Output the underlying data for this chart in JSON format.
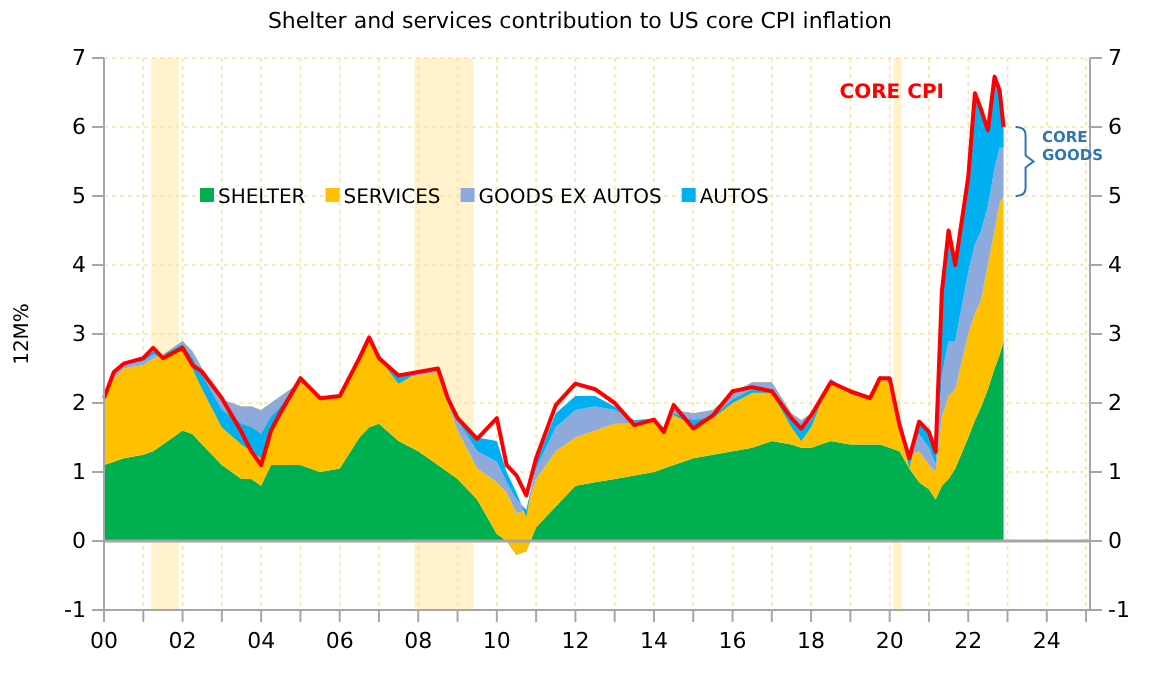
{
  "chart_data": {
    "type": "area",
    "stacked": true,
    "title": "Shelter and services contribution to US core CPI inflation",
    "ylabel": "12M%",
    "x": [
      2000.0,
      2000.25,
      2000.5,
      2001.0,
      2001.25,
      2001.5,
      2002.0,
      2002.25,
      2002.5,
      2003.0,
      2003.5,
      2003.75,
      2004.0,
      2004.25,
      2004.5,
      2005.0,
      2005.5,
      2006.0,
      2006.5,
      2006.75,
      2007.0,
      2007.5,
      2008.0,
      2008.5,
      2008.75,
      2009.0,
      2009.5,
      2010.0,
      2010.25,
      2010.5,
      2010.75,
      2011.0,
      2011.5,
      2012.0,
      2012.5,
      2013.0,
      2013.5,
      2014.0,
      2014.25,
      2014.5,
      2015.0,
      2015.5,
      2016.0,
      2016.5,
      2017.0,
      2017.5,
      2017.75,
      2018.0,
      2018.5,
      2019.0,
      2019.5,
      2019.75,
      2020.0,
      2020.25,
      2020.5,
      2020.75,
      2021.0,
      2021.17,
      2021.33,
      2021.5,
      2021.67,
      2022.0,
      2022.17,
      2022.33,
      2022.5,
      2022.67,
      2022.8,
      2022.9
    ],
    "series": [
      {
        "name": "SHELTER",
        "color": "#00b050",
        "values": [
          1.1,
          1.15,
          1.2,
          1.25,
          1.3,
          1.4,
          1.6,
          1.55,
          1.4,
          1.1,
          0.9,
          0.9,
          0.8,
          1.1,
          1.1,
          1.1,
          1.0,
          1.05,
          1.5,
          1.65,
          1.7,
          1.45,
          1.3,
          1.1,
          1.0,
          0.9,
          0.6,
          0.1,
          0.0,
          -0.2,
          -0.15,
          0.2,
          0.5,
          0.8,
          0.85,
          0.9,
          0.95,
          1.0,
          1.05,
          1.1,
          1.2,
          1.25,
          1.3,
          1.35,
          1.45,
          1.4,
          1.35,
          1.35,
          1.45,
          1.4,
          1.4,
          1.4,
          1.35,
          1.3,
          1.05,
          0.85,
          0.75,
          0.6,
          0.8,
          0.9,
          1.05,
          1.5,
          1.75,
          1.95,
          2.2,
          2.5,
          2.7,
          2.9
        ]
      },
      {
        "name": "SERVICES",
        "color": "#ffc000",
        "values": [
          0.95,
          1.2,
          1.3,
          1.3,
          1.35,
          1.3,
          1.3,
          1.2,
          1.1,
          0.95,
          1.05,
          1.05,
          1.1,
          0.9,
          1.0,
          1.2,
          1.05,
          1.05,
          1.1,
          1.25,
          1.0,
          0.9,
          1.1,
          1.35,
          1.0,
          0.7,
          0.45,
          0.75,
          0.7,
          0.6,
          0.6,
          0.7,
          0.8,
          0.7,
          0.75,
          0.8,
          0.75,
          0.75,
          0.6,
          0.8,
          0.65,
          0.65,
          0.85,
          0.95,
          0.85,
          0.45,
          0.4,
          0.5,
          0.85,
          0.8,
          0.7,
          0.95,
          1.0,
          0.5,
          0.2,
          0.45,
          0.35,
          0.4,
          1.0,
          1.2,
          1.15,
          1.5,
          1.55,
          1.55,
          1.8,
          2.0,
          2.2,
          2.1
        ]
      },
      {
        "name": "GOODS EX AUTOS",
        "color": "#8ea9db",
        "values": [
          0.03,
          0.05,
          0.05,
          0.05,
          0.05,
          0.0,
          -0.05,
          -0.1,
          -0.1,
          -0.15,
          -0.25,
          -0.3,
          -0.35,
          -0.2,
          -0.15,
          0.05,
          0.02,
          0.0,
          0.05,
          0.05,
          0.0,
          0.03,
          0.05,
          0.05,
          0.05,
          0.15,
          0.25,
          0.3,
          0.15,
          0.2,
          0.0,
          0.15,
          0.35,
          0.4,
          0.35,
          0.2,
          0.05,
          0.02,
          -0.05,
          -0.05,
          -0.1,
          -0.1,
          -0.1,
          -0.1,
          -0.1,
          -0.1,
          -0.15,
          -0.1,
          0.0,
          -0.05,
          -0.05,
          0.02,
          -0.05,
          -0.05,
          -0.05,
          0.25,
          0.25,
          0.1,
          0.6,
          0.8,
          0.7,
          0.9,
          1.0,
          1.0,
          0.85,
          0.9,
          0.8,
          0.7
        ]
      },
      {
        "name": "AUTOS",
        "color": "#00b0f0",
        "values": [
          0.0,
          0.05,
          0.03,
          0.05,
          0.05,
          0.0,
          -0.1,
          -0.15,
          -0.2,
          -0.25,
          -0.3,
          -0.35,
          -0.35,
          -0.25,
          -0.15,
          -0.05,
          0.0,
          0.0,
          0.0,
          0.02,
          -0.05,
          -0.1,
          0.0,
          0.0,
          0.02,
          0.05,
          0.2,
          0.3,
          0.15,
          0.1,
          -0.1,
          0.1,
          0.2,
          0.2,
          0.15,
          0.05,
          -0.02,
          -0.02,
          -0.02,
          -0.02,
          -0.08,
          -0.02,
          -0.05,
          -0.05,
          -0.05,
          -0.1,
          -0.15,
          -0.1,
          0.05,
          -0.02,
          0.0,
          0.03,
          -0.02,
          -0.05,
          -0.15,
          0.15,
          0.2,
          0.15,
          1.2,
          1.6,
          1.1,
          1.35,
          2.2,
          1.75,
          1.1,
          1.3,
          0.8,
          0.3
        ]
      },
      {
        "type": "line",
        "color": "#ff0000",
        "values": [
          2.07,
          2.45,
          2.57,
          2.65,
          2.8,
          2.65,
          2.8,
          2.55,
          2.45,
          2.07,
          1.58,
          1.3,
          1.1,
          1.6,
          1.87,
          2.36,
          2.07,
          2.1,
          2.65,
          2.95,
          2.65,
          2.4,
          2.45,
          2.5,
          2.07,
          1.78,
          1.48,
          1.78,
          1.1,
          0.95,
          0.66,
          1.2,
          1.97,
          2.28,
          2.2,
          2.0,
          1.68,
          1.76,
          1.58,
          1.97,
          1.63,
          1.82,
          2.17,
          2.23,
          2.17,
          1.78,
          1.63,
          1.82,
          2.3,
          2.17,
          2.07,
          2.36,
          2.36,
          1.68,
          1.2,
          1.73,
          1.58,
          1.29,
          3.62,
          4.5,
          4.0,
          5.27,
          6.49,
          6.25,
          5.95,
          6.73,
          6.53,
          6.0
        ]
      }
    ],
    "xlim": [
      2000,
      2025.1
    ],
    "xticks": [
      {
        "value": 2000,
        "label": "00"
      },
      {
        "value": 2001,
        "label": null
      },
      {
        "value": 2002,
        "label": "02"
      },
      {
        "value": 2003,
        "label": null
      },
      {
        "value": 2004,
        "label": "04"
      },
      {
        "value": 2005,
        "label": null
      },
      {
        "value": 2006,
        "label": "06"
      },
      {
        "value": 2007,
        "label": null
      },
      {
        "value": 2008,
        "label": "08"
      },
      {
        "value": 2009,
        "label": null
      },
      {
        "value": 2010,
        "label": "10"
      },
      {
        "value": 2011,
        "label": null
      },
      {
        "value": 2012,
        "label": "12"
      },
      {
        "value": 2013,
        "label": null
      },
      {
        "value": 2014,
        "label": "14"
      },
      {
        "value": 2015,
        "label": null
      },
      {
        "value": 2016,
        "label": "16"
      },
      {
        "value": 2017,
        "label": null
      },
      {
        "value": 2018,
        "label": "18"
      },
      {
        "value": 2019,
        "label": null
      },
      {
        "value": 2020,
        "label": "20"
      },
      {
        "value": 2021,
        "label": null
      },
      {
        "value": 2022,
        "label": "22"
      },
      {
        "value": 2023,
        "label": null
      },
      {
        "value": 2024,
        "label": "24"
      },
      {
        "value": 2025,
        "label": null
      }
    ],
    "ylim": [
      -1,
      7
    ],
    "yticks": [
      -1,
      0,
      1,
      2,
      3,
      4,
      5,
      6,
      7
    ],
    "y2lim": [
      -1,
      7
    ],
    "y2ticks": [
      -1,
      0,
      1,
      2,
      3,
      4,
      5,
      6,
      7
    ],
    "grid": true,
    "legend": "top left",
    "bands": [
      {
        "axis": "x",
        "from": 2001.2,
        "to": 2001.9,
        "color": "#fff2cc"
      },
      {
        "axis": "x",
        "from": 2007.9,
        "to": 2009.4,
        "color": "#fff2cc"
      },
      {
        "axis": "x",
        "from": 2020.1,
        "to": 2020.3,
        "color": "#fff2cc"
      }
    ],
    "ref_lines": [
      {
        "axis": "y",
        "value": 0,
        "color": "#a6a6a6"
      }
    ],
    "annotations": [
      "CORE CPI",
      "CORE GOODS"
    ]
  }
}
